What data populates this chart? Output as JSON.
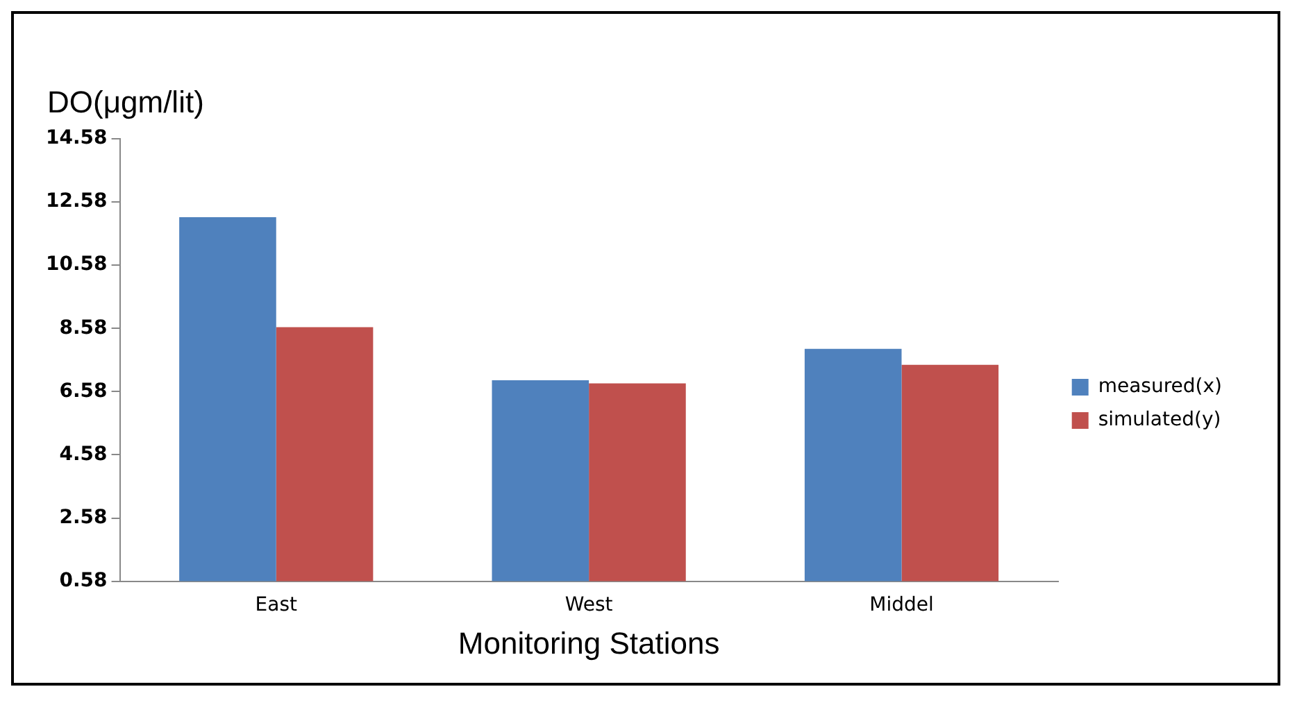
{
  "chart_data": {
    "type": "bar",
    "ylabel": "DO(μgm/lit)",
    "xlabel": "Monitoring Stations",
    "categories": [
      "East",
      "West",
      "Middel"
    ],
    "series": [
      {
        "name": "measured(x)",
        "color": "#4f81bd",
        "values": [
          12.1,
          6.94,
          7.93
        ]
      },
      {
        "name": "simulated(y)",
        "color": "#c0504d",
        "values": [
          8.62,
          6.84,
          7.43
        ]
      }
    ],
    "ylim": [
      0.58,
      14.58
    ],
    "yticks": [
      0.58,
      2.58,
      4.58,
      6.58,
      8.58,
      10.58,
      12.58,
      14.58
    ],
    "grid": false,
    "legend": "right"
  }
}
